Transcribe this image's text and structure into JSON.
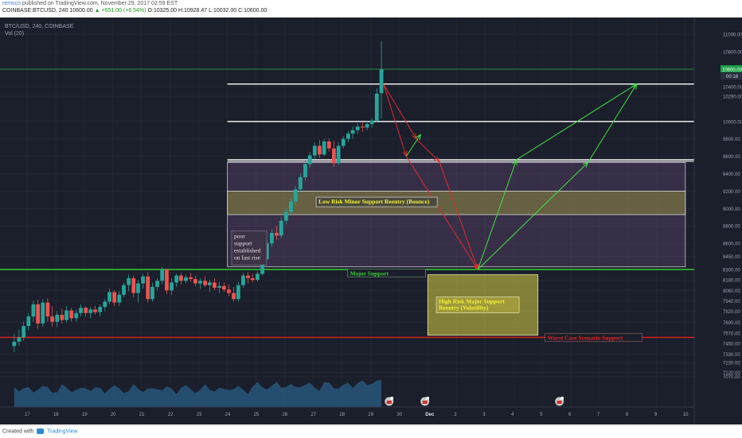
{
  "header": {
    "author": "remsco",
    "published": "published on TradingView.com, November 29, 2017 02:59 EST",
    "symbol_line": "COINBASE:BTCUSD, 240  10600.00",
    "change": "▲ +651.00 (+6.54%)",
    "ohlc": "O:10325.00  H:10928.47  L:10032.00  C:10600.00"
  },
  "legend": {
    "series": "BTC/USD, 240, COINBASE",
    "volume": "Vol (20)"
  },
  "footer": {
    "created_with": "Created with",
    "brand": "TradingView"
  },
  "colors": {
    "background": "#1b1e2b",
    "up": "#26a69a",
    "down": "#ef5350",
    "green_line": "#2fd02f",
    "red_line": "#e81e1e",
    "zone_purple": "#6e4f7c",
    "zone_yellow": "#d8d245",
    "green_arrow": "#44e044",
    "red_arrow": "#e02c2c"
  },
  "chart_data": {
    "type": "candlestick",
    "price_axis": {
      "ticks": [
        11000,
        10800,
        10600,
        10400,
        10290,
        10000,
        9800,
        9600,
        9400,
        9200,
        9000,
        8800,
        8600,
        8450,
        8300,
        8180,
        8060,
        7940,
        7820,
        7695,
        7570,
        7450,
        7330,
        7230,
        7120,
        7070
      ],
      "tick_labels": [
        "11000.00",
        "10800.00",
        "10600.00",
        "10400.00",
        "10290.00",
        "10000.00",
        "9800.00",
        "9600.00",
        "9400.00",
        "9200.00",
        "9000.00",
        "8800.00",
        "8600.00",
        "8450.00",
        "8300.00",
        "8180.00",
        "8060.00",
        "7940.00",
        "7820.00",
        "7695.00",
        "7570.00",
        "7450.00",
        "7330.00",
        "7230.00",
        "7120.00",
        "7070.00"
      ],
      "current_price": "10600.00",
      "countdown": "00:18"
    },
    "time_axis": {
      "labels": [
        "17",
        "18",
        "19",
        "20",
        "21",
        "22",
        "23",
        "24",
        "25",
        "26",
        "27",
        "28",
        "29",
        "30",
        "Dec",
        "2",
        "3",
        "4",
        "5",
        "6",
        "7",
        "8",
        "9",
        "10"
      ],
      "day_index": [
        0,
        1,
        2,
        3,
        4,
        5,
        6,
        7,
        8,
        9,
        10,
        11,
        12,
        13,
        14,
        15,
        16,
        17,
        18,
        19,
        20,
        21,
        22,
        23
      ]
    },
    "horizontal_lines": [
      {
        "price": 10600,
        "style": "green-thin"
      },
      {
        "price": 10430,
        "style": "white"
      },
      {
        "price": 10000,
        "style": "white"
      },
      {
        "price": 9560,
        "style": "white"
      },
      {
        "price": 8300,
        "style": "green",
        "label": "Major Support"
      },
      {
        "price": 7520,
        "style": "red",
        "label": "Worst Case Scenario Support"
      }
    ],
    "zones": [
      {
        "from_day": 7.0,
        "to_day": 23.0,
        "top": 9530,
        "bottom": 8330,
        "kind": "purple"
      },
      {
        "from_day": 7.0,
        "to_day": 23.0,
        "top": 9200,
        "bottom": 8930,
        "kind": "yellow-band",
        "label": "Low Risk Minor Support Reentry (Bounce)"
      },
      {
        "from_day": 14.0,
        "to_day": 17.85,
        "top": 8240,
        "bottom": 7545,
        "kind": "yellow",
        "label": "High Risk Major Support Reentry (Volatility)"
      }
    ],
    "annotation": {
      "text": "poor support established on fast rise",
      "day": 7.1,
      "price": 8620
    },
    "candles": [
      {
        "d": -0.45,
        "o": 7420,
        "h": 7560,
        "l": 7350,
        "c": 7470
      },
      {
        "d": -0.28,
        "o": 7470,
        "h": 7610,
        "l": 7420,
        "c": 7520
      },
      {
        "d": -0.12,
        "o": 7520,
        "h": 7700,
        "l": 7480,
        "c": 7650
      },
      {
        "d": 0.05,
        "o": 7650,
        "h": 7800,
        "l": 7600,
        "c": 7760
      },
      {
        "d": 0.22,
        "o": 7760,
        "h": 7940,
        "l": 7700,
        "c": 7900
      },
      {
        "d": 0.38,
        "o": 7900,
        "h": 7950,
        "l": 7620,
        "c": 7680
      },
      {
        "d": 0.55,
        "o": 7680,
        "h": 7960,
        "l": 7640,
        "c": 7920
      },
      {
        "d": 0.72,
        "o": 7920,
        "h": 7970,
        "l": 7700,
        "c": 7760
      },
      {
        "d": 0.88,
        "o": 7760,
        "h": 7880,
        "l": 7640,
        "c": 7700
      },
      {
        "d": 1.05,
        "o": 7700,
        "h": 7820,
        "l": 7640,
        "c": 7780
      },
      {
        "d": 1.22,
        "o": 7780,
        "h": 7850,
        "l": 7680,
        "c": 7720
      },
      {
        "d": 1.38,
        "o": 7720,
        "h": 7880,
        "l": 7690,
        "c": 7830
      },
      {
        "d": 1.55,
        "o": 7830,
        "h": 7860,
        "l": 7700,
        "c": 7740
      },
      {
        "d": 1.72,
        "o": 7740,
        "h": 7840,
        "l": 7700,
        "c": 7800
      },
      {
        "d": 1.88,
        "o": 7800,
        "h": 7900,
        "l": 7760,
        "c": 7860
      },
      {
        "d": 2.05,
        "o": 7860,
        "h": 7880,
        "l": 7760,
        "c": 7800
      },
      {
        "d": 2.22,
        "o": 7800,
        "h": 7870,
        "l": 7740,
        "c": 7840
      },
      {
        "d": 2.38,
        "o": 7840,
        "h": 7880,
        "l": 7780,
        "c": 7810
      },
      {
        "d": 2.55,
        "o": 7810,
        "h": 7900,
        "l": 7760,
        "c": 7870
      },
      {
        "d": 2.72,
        "o": 7870,
        "h": 7960,
        "l": 7820,
        "c": 7930
      },
      {
        "d": 2.88,
        "o": 7930,
        "h": 8080,
        "l": 7900,
        "c": 8040
      },
      {
        "d": 3.05,
        "o": 8040,
        "h": 8060,
        "l": 7880,
        "c": 7920
      },
      {
        "d": 3.22,
        "o": 7920,
        "h": 8050,
        "l": 7880,
        "c": 8010
      },
      {
        "d": 3.38,
        "o": 8010,
        "h": 8150,
        "l": 7980,
        "c": 8120
      },
      {
        "d": 3.55,
        "o": 8120,
        "h": 8240,
        "l": 8050,
        "c": 8200
      },
      {
        "d": 3.72,
        "o": 8200,
        "h": 8230,
        "l": 7980,
        "c": 8030
      },
      {
        "d": 3.88,
        "o": 8030,
        "h": 8180,
        "l": 7920,
        "c": 8140
      },
      {
        "d": 4.05,
        "o": 8140,
        "h": 8250,
        "l": 8080,
        "c": 8220
      },
      {
        "d": 4.22,
        "o": 8220,
        "h": 8270,
        "l": 7920,
        "c": 7960
      },
      {
        "d": 4.38,
        "o": 7960,
        "h": 8150,
        "l": 7930,
        "c": 8100
      },
      {
        "d": 4.55,
        "o": 8100,
        "h": 8200,
        "l": 8060,
        "c": 8170
      },
      {
        "d": 4.72,
        "o": 8170,
        "h": 8330,
        "l": 8130,
        "c": 8300
      },
      {
        "d": 4.88,
        "o": 8300,
        "h": 8310,
        "l": 8020,
        "c": 8060
      },
      {
        "d": 5.05,
        "o": 8060,
        "h": 8200,
        "l": 8010,
        "c": 8150
      },
      {
        "d": 5.22,
        "o": 8150,
        "h": 8250,
        "l": 8100,
        "c": 8230
      },
      {
        "d": 5.38,
        "o": 8230,
        "h": 8260,
        "l": 8130,
        "c": 8170
      },
      {
        "d": 5.55,
        "o": 8170,
        "h": 8240,
        "l": 8140,
        "c": 8210
      },
      {
        "d": 5.72,
        "o": 8210,
        "h": 8260,
        "l": 8160,
        "c": 8190
      },
      {
        "d": 5.88,
        "o": 8190,
        "h": 8230,
        "l": 8110,
        "c": 8140
      },
      {
        "d": 6.05,
        "o": 8140,
        "h": 8200,
        "l": 8080,
        "c": 8170
      },
      {
        "d": 6.22,
        "o": 8170,
        "h": 8220,
        "l": 8100,
        "c": 8120
      },
      {
        "d": 6.38,
        "o": 8120,
        "h": 8180,
        "l": 8040,
        "c": 8150
      },
      {
        "d": 6.55,
        "o": 8150,
        "h": 8200,
        "l": 8060,
        "c": 8090
      },
      {
        "d": 6.72,
        "o": 8090,
        "h": 8160,
        "l": 8030,
        "c": 8110
      },
      {
        "d": 6.88,
        "o": 8110,
        "h": 8150,
        "l": 8040,
        "c": 8070
      },
      {
        "d": 7.05,
        "o": 8070,
        "h": 8130,
        "l": 7990,
        "c": 8030
      },
      {
        "d": 7.22,
        "o": 8030,
        "h": 8100,
        "l": 7930,
        "c": 7960
      },
      {
        "d": 7.38,
        "o": 7960,
        "h": 8160,
        "l": 7930,
        "c": 8120
      },
      {
        "d": 7.55,
        "o": 8120,
        "h": 8260,
        "l": 8090,
        "c": 8230
      },
      {
        "d": 7.72,
        "o": 8230,
        "h": 8270,
        "l": 8140,
        "c": 8200
      },
      {
        "d": 7.88,
        "o": 8200,
        "h": 8250,
        "l": 8150,
        "c": 8180
      },
      {
        "d": 8.05,
        "o": 8180,
        "h": 8280,
        "l": 8160,
        "c": 8250
      },
      {
        "d": 8.22,
        "o": 8250,
        "h": 8450,
        "l": 8230,
        "c": 8420
      },
      {
        "d": 8.38,
        "o": 8420,
        "h": 8640,
        "l": 8400,
        "c": 8600
      },
      {
        "d": 8.55,
        "o": 8600,
        "h": 8760,
        "l": 8560,
        "c": 8720
      },
      {
        "d": 8.72,
        "o": 8720,
        "h": 8800,
        "l": 8640,
        "c": 8690
      },
      {
        "d": 8.88,
        "o": 8690,
        "h": 8900,
        "l": 8660,
        "c": 8860
      },
      {
        "d": 9.05,
        "o": 8860,
        "h": 9000,
        "l": 8820,
        "c": 8960
      },
      {
        "d": 9.22,
        "o": 8960,
        "h": 9120,
        "l": 8920,
        "c": 9080
      },
      {
        "d": 9.38,
        "o": 9080,
        "h": 9260,
        "l": 9040,
        "c": 9220
      },
      {
        "d": 9.55,
        "o": 9220,
        "h": 9400,
        "l": 9180,
        "c": 9360
      },
      {
        "d": 9.72,
        "o": 9360,
        "h": 9560,
        "l": 9320,
        "c": 9510
      },
      {
        "d": 9.88,
        "o": 9510,
        "h": 9650,
        "l": 9470,
        "c": 9610
      },
      {
        "d": 10.05,
        "o": 9610,
        "h": 9760,
        "l": 9570,
        "c": 9720
      },
      {
        "d": 10.22,
        "o": 9720,
        "h": 9790,
        "l": 9580,
        "c": 9620
      },
      {
        "d": 10.38,
        "o": 9620,
        "h": 9800,
        "l": 9600,
        "c": 9770
      },
      {
        "d": 10.55,
        "o": 9770,
        "h": 9800,
        "l": 9650,
        "c": 9690
      },
      {
        "d": 10.72,
        "o": 9690,
        "h": 9780,
        "l": 9480,
        "c": 9520
      },
      {
        "d": 10.88,
        "o": 9520,
        "h": 9760,
        "l": 9500,
        "c": 9720
      },
      {
        "d": 11.05,
        "o": 9720,
        "h": 9830,
        "l": 9690,
        "c": 9800
      },
      {
        "d": 11.22,
        "o": 9800,
        "h": 9890,
        "l": 9760,
        "c": 9860
      },
      {
        "d": 11.38,
        "o": 9860,
        "h": 9940,
        "l": 9800,
        "c": 9900
      },
      {
        "d": 11.55,
        "o": 9900,
        "h": 9980,
        "l": 9850,
        "c": 9940
      },
      {
        "d": 11.72,
        "o": 9940,
        "h": 9990,
        "l": 9880,
        "c": 9930
      },
      {
        "d": 11.88,
        "o": 9930,
        "h": 10010,
        "l": 9900,
        "c": 9970
      },
      {
        "d": 12.05,
        "o": 9970,
        "h": 10040,
        "l": 9930,
        "c": 10010
      },
      {
        "d": 12.22,
        "o": 10010,
        "h": 10380,
        "l": 9990,
        "c": 10320
      },
      {
        "d": 12.38,
        "o": 10325,
        "h": 10928,
        "l": 10032,
        "c": 10600
      }
    ],
    "arrows_red": [
      [
        [
          12.45,
          10430
        ],
        [
          13.25,
          9600
        ],
        [
          15.75,
          8300
        ]
      ],
      [
        [
          12.45,
          10430
        ],
        [
          13.6,
          9800
        ],
        [
          14.4,
          9540
        ]
      ],
      [
        [
          14.4,
          9540
        ],
        [
          15.75,
          8300
        ]
      ]
    ],
    "arrows_green": [
      [
        [
          13.25,
          9600
        ],
        [
          13.75,
          9850
        ]
      ],
      [
        [
          15.75,
          8300
        ],
        [
          17.1,
          9560
        ],
        [
          21.3,
          10430
        ]
      ],
      [
        [
          15.75,
          8300
        ],
        [
          19.6,
          9530
        ],
        [
          21.3,
          10430
        ]
      ]
    ],
    "events_days": [
      12.65,
      13.9,
      18.6
    ]
  }
}
